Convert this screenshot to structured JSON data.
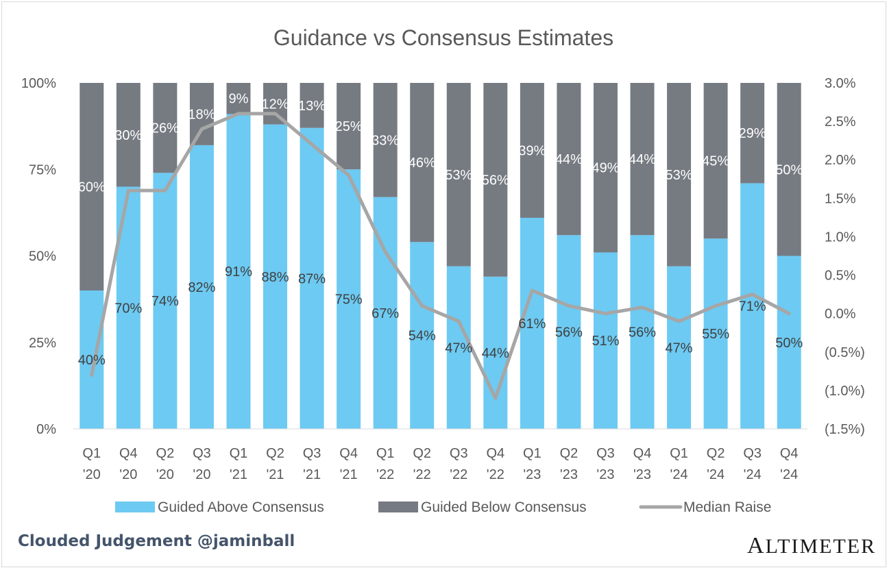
{
  "chart_data": {
    "type": "bar",
    "stacked": true,
    "title": "Guidance vs Consensus Estimates",
    "categories": [
      [
        "Q1",
        "'20"
      ],
      [
        "Q4",
        "'20"
      ],
      [
        "Q2",
        "'20"
      ],
      [
        "Q3",
        "'20"
      ],
      [
        "Q1",
        "'21"
      ],
      [
        "Q2",
        "'21"
      ],
      [
        "Q3",
        "'21"
      ],
      [
        "Q4",
        "'21"
      ],
      [
        "Q1",
        "'22"
      ],
      [
        "Q2",
        "'22"
      ],
      [
        "Q3",
        "'22"
      ],
      [
        "Q4",
        "'22"
      ],
      [
        "Q1",
        "'23"
      ],
      [
        "Q2",
        "'23"
      ],
      [
        "Q3",
        "'23"
      ],
      [
        "Q4",
        "'23"
      ],
      [
        "Q1",
        "'24"
      ],
      [
        "Q2",
        "'24"
      ],
      [
        "Q3",
        "'24"
      ],
      [
        "Q4",
        "'24"
      ]
    ],
    "series": [
      {
        "name": "Guided Above Consensus",
        "axis": "left",
        "color": "#6dcaf2",
        "values": [
          40,
          70,
          74,
          82,
          91,
          88,
          87,
          75,
          67,
          54,
          47,
          44,
          61,
          56,
          51,
          56,
          47,
          55,
          71,
          50
        ],
        "labels": [
          "40%",
          "70%",
          "74%",
          "82%",
          "91%",
          "88%",
          "87%",
          "75%",
          "67%",
          "54%",
          "47%",
          "44%",
          "61%",
          "56%",
          "51%",
          "56%",
          "47%",
          "55%",
          "71%",
          "50%"
        ]
      },
      {
        "name": "Guided Below Consensus",
        "axis": "left",
        "color": "#767b82",
        "values": [
          60,
          30,
          26,
          18,
          9,
          12,
          13,
          25,
          33,
          46,
          53,
          56,
          39,
          44,
          49,
          44,
          53,
          45,
          29,
          50
        ],
        "labels": [
          "60%",
          "30%",
          "26%",
          "18%",
          "9%",
          "12%",
          "13%",
          "25%",
          "33%",
          "46%",
          "53%",
          "56%",
          "39%",
          "44%",
          "49%",
          "44%",
          "53%",
          "45%",
          "29%",
          "50%"
        ]
      },
      {
        "name": "Median Raise",
        "type": "line",
        "axis": "right",
        "color": "#a6a6a6",
        "values": [
          -0.8,
          1.6,
          1.6,
          2.4,
          2.6,
          2.6,
          2.2,
          1.8,
          0.8,
          0.1,
          -0.1,
          -1.1,
          0.3,
          0.1,
          0.0,
          0.08,
          -0.1,
          0.1,
          0.25,
          0.0
        ]
      }
    ],
    "y_left": {
      "min": 0,
      "max": 100,
      "ticks": [
        "0%",
        "25%",
        "50%",
        "75%",
        "100%"
      ]
    },
    "y_right": {
      "min": -1.5,
      "max": 3.0,
      "ticks": [
        "(1.5%)",
        "(1.0%)",
        "(0.5%)",
        "0.0%",
        "0.5%",
        "1.0%",
        "1.5%",
        "2.0%",
        "2.5%",
        "3.0%"
      ]
    },
    "legend": {
      "position": "bottom"
    },
    "grid": false
  },
  "footer": {
    "attribution": "Clouded Judgement @jaminball",
    "logo_text": "ALTIMETER"
  }
}
